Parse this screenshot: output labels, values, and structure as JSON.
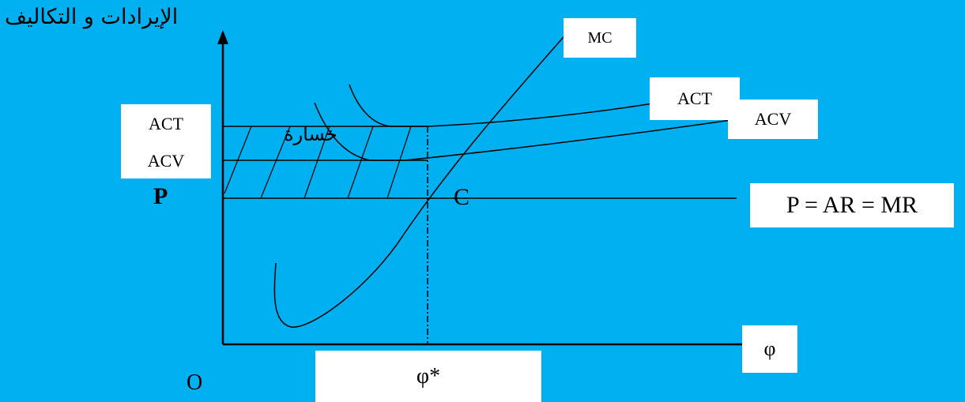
{
  "y_axis_label": "الإيرادات و التكاليف",
  "x_axis_label": "φ",
  "origin_label": "O",
  "q_star_label": "φ*",
  "price_label": "P",
  "point_c_label": "C",
  "loss_label": "خسارة",
  "box_labels": {
    "act_left": "ACT",
    "acv_left": "ACV",
    "mc": "MC",
    "act_curve": "ACT",
    "acv_curve": "ACV",
    "price_line": "P = AR = MR"
  },
  "colors": {
    "background": "#00b0f0",
    "ink": "#000000",
    "box": "#ffffff"
  }
}
